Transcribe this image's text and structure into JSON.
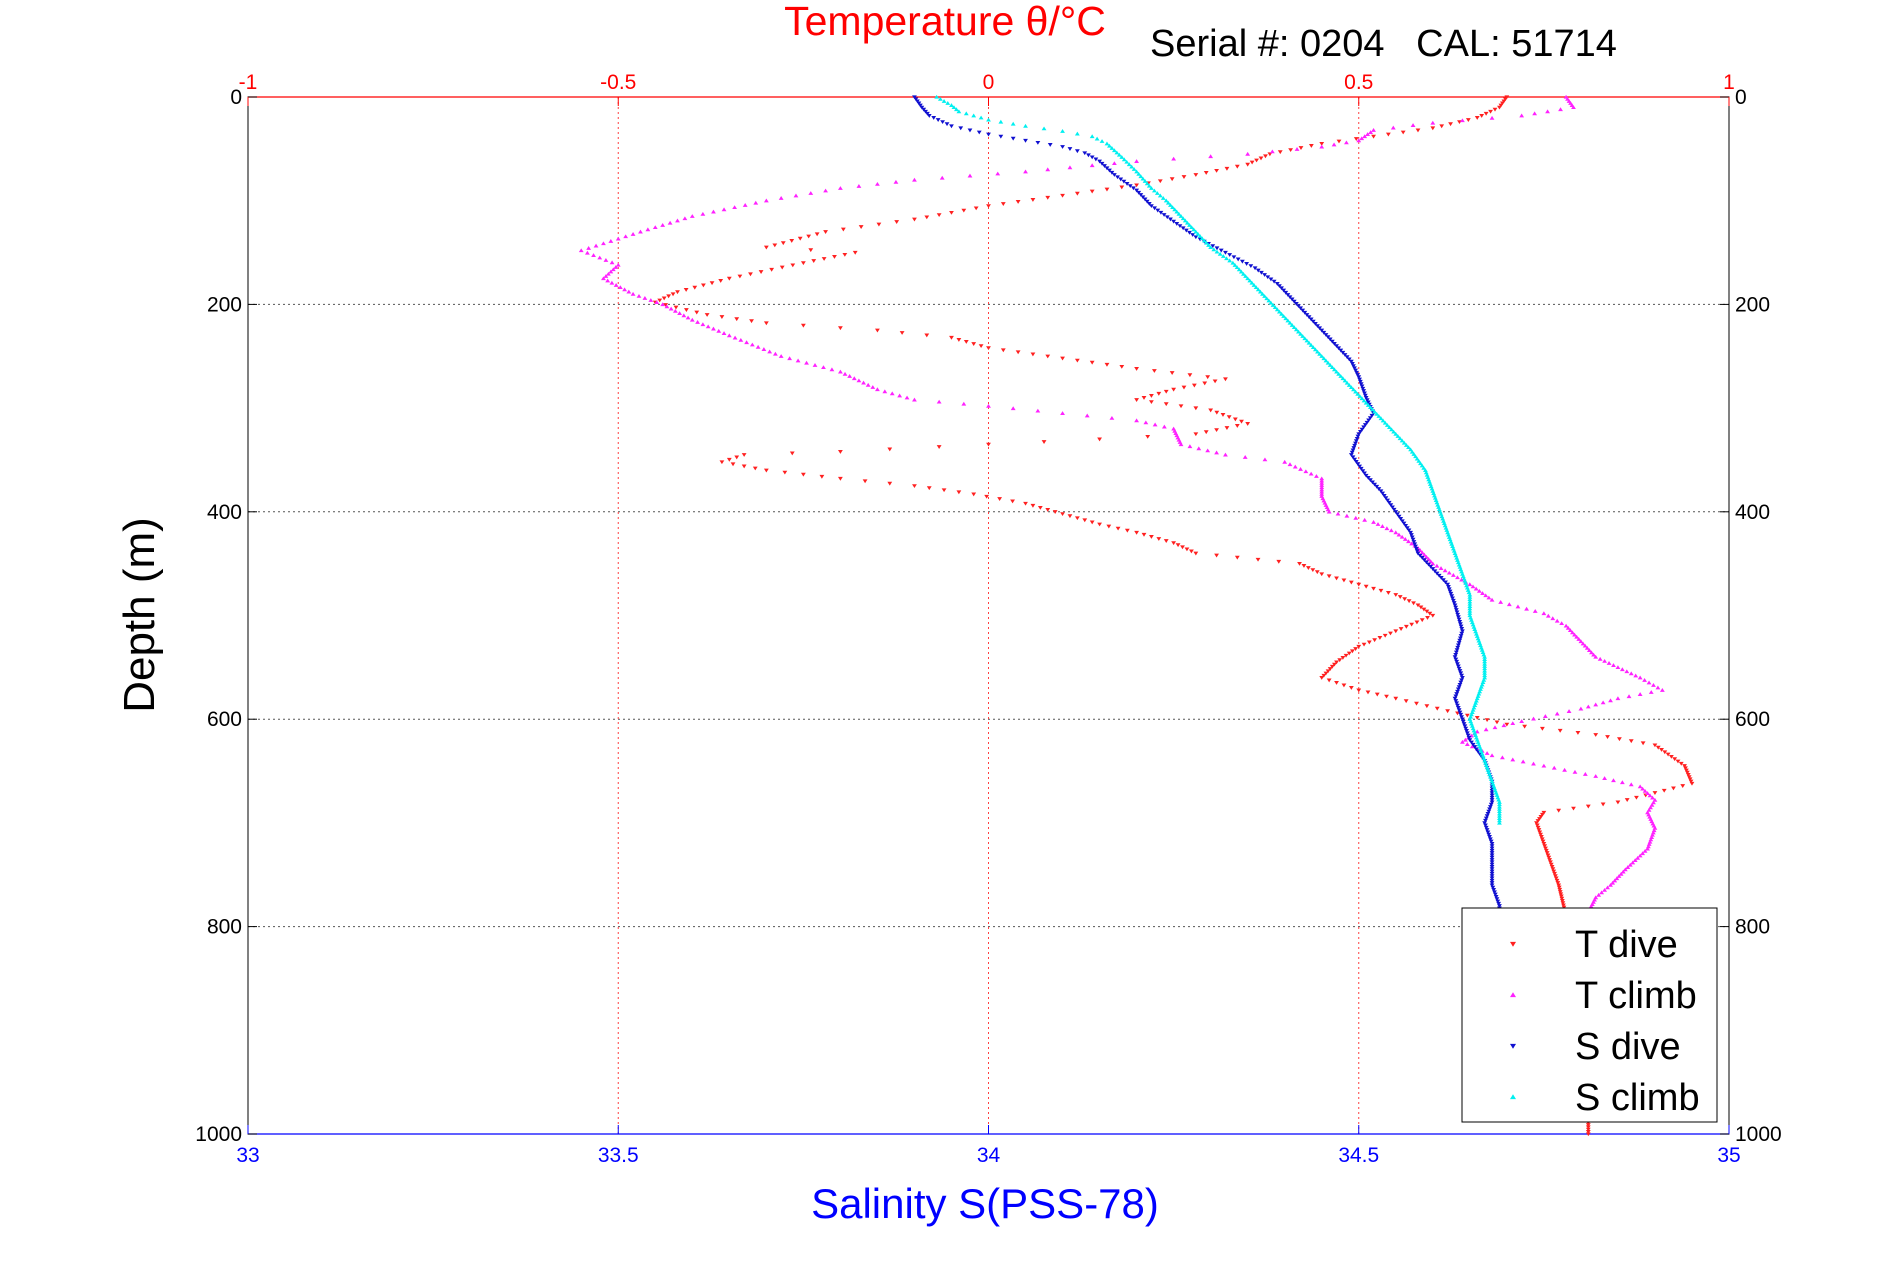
{
  "page": {
    "top_title": "Temperature θ/°C",
    "serial_text": "Serial #: 0204   CAL: 51714"
  },
  "chart_data": {
    "type": "scatter",
    "title": "Temperature θ/°C",
    "subtitle": "Serial #: 0204   CAL: 51714",
    "ylabel": "Depth (m)",
    "xlabel_bottom": "Salinity S(PSS-78)",
    "xlabel_top": "Temperature θ/°C",
    "ylim": [
      1000,
      0
    ],
    "xlim_bottom": [
      33,
      35
    ],
    "xlim_top": [
      -1,
      1
    ],
    "y_ticks": [
      0,
      200,
      400,
      600,
      800,
      1000
    ],
    "x_ticks_bottom": [
      33,
      33.5,
      34,
      34.5,
      35
    ],
    "x_ticks_bottom_labels": [
      "33",
      "33.5",
      "34",
      "34.5",
      "35"
    ],
    "x_ticks_top": [
      -1,
      -0.5,
      0,
      0.5,
      1
    ],
    "x_ticks_top_labels": [
      "-1",
      "-0.5",
      "0",
      "0.5",
      "1"
    ],
    "grid": true,
    "legend_position": "bottom-right",
    "colors": {
      "temperature_axis": "#ff0000",
      "salinity_axis": "#0000ff",
      "t_dive": "#ff2020",
      "t_climb": "#ff22ff",
      "s_dive": "#1010d0",
      "s_climb": "#00f0f0"
    },
    "series": [
      {
        "name": "T dive",
        "axis": "temperature",
        "marker": "down-triangle",
        "color": "#ff2020",
        "points": [
          [
            0.7,
            0
          ],
          [
            0.69,
            10
          ],
          [
            0.66,
            20
          ],
          [
            0.6,
            30
          ],
          [
            0.52,
            38
          ],
          [
            0.45,
            45
          ],
          [
            0.38,
            55
          ],
          [
            0.35,
            65
          ],
          [
            0.28,
            75
          ],
          [
            0.2,
            85
          ],
          [
            0.1,
            95
          ],
          [
            0.0,
            105
          ],
          [
            -0.1,
            118
          ],
          [
            -0.22,
            130
          ],
          [
            -0.3,
            145
          ],
          [
            -0.18,
            150
          ],
          [
            -0.25,
            160
          ],
          [
            -0.35,
            175
          ],
          [
            -0.42,
            188
          ],
          [
            -0.45,
            198
          ],
          [
            -0.38,
            210
          ],
          [
            -0.3,
            218
          ],
          [
            -0.15,
            225
          ],
          [
            -0.05,
            232
          ],
          [
            0.0,
            242
          ],
          [
            0.1,
            252
          ],
          [
            0.2,
            262
          ],
          [
            0.32,
            272
          ],
          [
            0.25,
            282
          ],
          [
            0.2,
            292
          ],
          [
            0.3,
            302
          ],
          [
            0.35,
            315
          ],
          [
            0.28,
            325
          ],
          [
            0.15,
            330
          ],
          [
            0.0,
            335
          ],
          [
            -0.2,
            342
          ],
          [
            -0.33,
            345
          ],
          [
            -0.36,
            352
          ],
          [
            -0.3,
            360
          ],
          [
            -0.2,
            368
          ],
          [
            -0.1,
            375
          ],
          [
            -0.02,
            383
          ],
          [
            0.05,
            392
          ],
          [
            0.1,
            402
          ],
          [
            0.15,
            412
          ],
          [
            0.2,
            420
          ],
          [
            0.25,
            430
          ],
          [
            0.28,
            440
          ],
          [
            0.42,
            450
          ],
          [
            0.45,
            460
          ],
          [
            0.5,
            470
          ],
          [
            0.55,
            480
          ],
          [
            0.58,
            490
          ],
          [
            0.6,
            500
          ],
          [
            0.55,
            515
          ],
          [
            0.5,
            530
          ],
          [
            0.47,
            545
          ],
          [
            0.45,
            560
          ],
          [
            0.5,
            572
          ],
          [
            0.55,
            580
          ],
          [
            0.62,
            592
          ],
          [
            0.7,
            605
          ],
          [
            0.82,
            615
          ],
          [
            0.9,
            625
          ],
          [
            0.94,
            645
          ],
          [
            0.95,
            662
          ],
          [
            0.85,
            680
          ],
          [
            0.75,
            690
          ],
          [
            0.74,
            700
          ],
          [
            0.75,
            720
          ],
          [
            0.76,
            740
          ],
          [
            0.77,
            760
          ],
          [
            0.78,
            790
          ],
          [
            0.8,
            850
          ],
          [
            0.81,
            920
          ],
          [
            0.81,
            980
          ],
          [
            0.81,
            1000
          ]
        ]
      },
      {
        "name": "T climb",
        "axis": "temperature",
        "marker": "up-triangle",
        "color": "#ff22ff",
        "points": [
          [
            0.78,
            0
          ],
          [
            0.79,
            10
          ],
          [
            0.72,
            18
          ],
          [
            0.6,
            25
          ],
          [
            0.52,
            32
          ],
          [
            0.5,
            42
          ],
          [
            0.45,
            48
          ],
          [
            0.35,
            55
          ],
          [
            0.2,
            62
          ],
          [
            0.05,
            72
          ],
          [
            -0.1,
            80
          ],
          [
            -0.2,
            88
          ],
          [
            -0.3,
            100
          ],
          [
            -0.4,
            115
          ],
          [
            -0.47,
            130
          ],
          [
            -0.55,
            148
          ],
          [
            -0.5,
            162
          ],
          [
            -0.52,
            175
          ],
          [
            -0.48,
            190
          ],
          [
            -0.44,
            200
          ],
          [
            -0.4,
            215
          ],
          [
            -0.35,
            230
          ],
          [
            -0.28,
            250
          ],
          [
            -0.2,
            265
          ],
          [
            -0.15,
            282
          ],
          [
            -0.1,
            292
          ],
          [
            0.0,
            298
          ],
          [
            0.1,
            305
          ],
          [
            0.2,
            312
          ],
          [
            0.25,
            320
          ],
          [
            0.26,
            335
          ],
          [
            0.32,
            345
          ],
          [
            0.4,
            352
          ],
          [
            0.45,
            368
          ],
          [
            0.45,
            385
          ],
          [
            0.46,
            400
          ],
          [
            0.52,
            410
          ],
          [
            0.55,
            420
          ],
          [
            0.58,
            435
          ],
          [
            0.6,
            450
          ],
          [
            0.65,
            470
          ],
          [
            0.68,
            485
          ],
          [
            0.75,
            498
          ],
          [
            0.78,
            510
          ],
          [
            0.8,
            525
          ],
          [
            0.82,
            540
          ],
          [
            0.85,
            550
          ],
          [
            0.88,
            560
          ],
          [
            0.91,
            572
          ],
          [
            0.85,
            580
          ],
          [
            0.8,
            590
          ],
          [
            0.72,
            602
          ],
          [
            0.66,
            612
          ],
          [
            0.64,
            622
          ],
          [
            0.68,
            635
          ],
          [
            0.75,
            645
          ],
          [
            0.82,
            655
          ],
          [
            0.88,
            665
          ],
          [
            0.9,
            678
          ],
          [
            0.89,
            690
          ],
          [
            0.9,
            705
          ],
          [
            0.89,
            725
          ],
          [
            0.86,
            745
          ],
          [
            0.84,
            760
          ],
          [
            0.82,
            772
          ],
          [
            0.8,
            800
          ],
          [
            0.8,
            850
          ]
        ]
      },
      {
        "name": "S dive",
        "axis": "salinity",
        "marker": "down-triangle",
        "color": "#1010d0",
        "points": [
          [
            33.9,
            0
          ],
          [
            33.91,
            10
          ],
          [
            33.92,
            18
          ],
          [
            33.95,
            28
          ],
          [
            34.0,
            36
          ],
          [
            34.05,
            42
          ],
          [
            34.1,
            48
          ],
          [
            34.13,
            54
          ],
          [
            34.15,
            62
          ],
          [
            34.17,
            75
          ],
          [
            34.2,
            90
          ],
          [
            34.22,
            105
          ],
          [
            34.25,
            120
          ],
          [
            34.28,
            135
          ],
          [
            34.32,
            150
          ],
          [
            34.36,
            165
          ],
          [
            34.39,
            180
          ],
          [
            34.41,
            195
          ],
          [
            34.43,
            210
          ],
          [
            34.45,
            225
          ],
          [
            34.47,
            240
          ],
          [
            34.49,
            255
          ],
          [
            34.5,
            270
          ],
          [
            34.51,
            290
          ],
          [
            34.52,
            305
          ],
          [
            34.5,
            325
          ],
          [
            34.49,
            345
          ],
          [
            34.51,
            365
          ],
          [
            34.53,
            380
          ],
          [
            34.55,
            400
          ],
          [
            34.57,
            420
          ],
          [
            34.58,
            440
          ],
          [
            34.6,
            455
          ],
          [
            34.62,
            470
          ],
          [
            34.63,
            490
          ],
          [
            34.64,
            515
          ],
          [
            34.63,
            540
          ],
          [
            34.64,
            560
          ],
          [
            34.63,
            580
          ],
          [
            34.64,
            600
          ],
          [
            34.65,
            620
          ],
          [
            34.67,
            640
          ],
          [
            34.68,
            660
          ],
          [
            34.68,
            680
          ],
          [
            34.67,
            700
          ],
          [
            34.68,
            720
          ],
          [
            34.68,
            740
          ],
          [
            34.68,
            760
          ],
          [
            34.69,
            780
          ],
          [
            34.69,
            800
          ]
        ]
      },
      {
        "name": "S climb",
        "axis": "salinity",
        "marker": "up-triangle",
        "color": "#00f0f0",
        "points": [
          [
            33.93,
            0
          ],
          [
            33.95,
            8
          ],
          [
            33.96,
            14
          ],
          [
            34.0,
            22
          ],
          [
            34.05,
            28
          ],
          [
            34.1,
            33
          ],
          [
            34.14,
            38
          ],
          [
            34.16,
            45
          ],
          [
            34.18,
            58
          ],
          [
            34.2,
            72
          ],
          [
            34.22,
            88
          ],
          [
            34.24,
            100
          ],
          [
            34.26,
            115
          ],
          [
            34.28,
            130
          ],
          [
            34.3,
            145
          ],
          [
            34.33,
            160
          ],
          [
            34.35,
            175
          ],
          [
            34.37,
            190
          ],
          [
            34.39,
            205
          ],
          [
            34.41,
            220
          ],
          [
            34.43,
            235
          ],
          [
            34.45,
            250
          ],
          [
            34.47,
            265
          ],
          [
            34.49,
            280
          ],
          [
            34.51,
            295
          ],
          [
            34.53,
            310
          ],
          [
            34.55,
            325
          ],
          [
            34.57,
            340
          ],
          [
            34.59,
            360
          ],
          [
            34.6,
            380
          ],
          [
            34.61,
            400
          ],
          [
            34.62,
            420
          ],
          [
            34.63,
            440
          ],
          [
            34.64,
            460
          ],
          [
            34.65,
            480
          ],
          [
            34.65,
            500
          ],
          [
            34.66,
            520
          ],
          [
            34.67,
            540
          ],
          [
            34.67,
            560
          ],
          [
            34.66,
            580
          ],
          [
            34.65,
            600
          ],
          [
            34.66,
            620
          ],
          [
            34.67,
            640
          ],
          [
            34.68,
            660
          ],
          [
            34.69,
            680
          ],
          [
            34.69,
            700
          ]
        ]
      }
    ]
  },
  "legend": {
    "items": [
      {
        "label": "T dive",
        "color": "#ff2020",
        "marker": "down-triangle"
      },
      {
        "label": "T climb",
        "color": "#ff22ff",
        "marker": "up-triangle"
      },
      {
        "label": "S dive",
        "color": "#1010d0",
        "marker": "down-triangle"
      },
      {
        "label": "S climb",
        "color": "#00f0f0",
        "marker": "up-triangle"
      }
    ]
  }
}
